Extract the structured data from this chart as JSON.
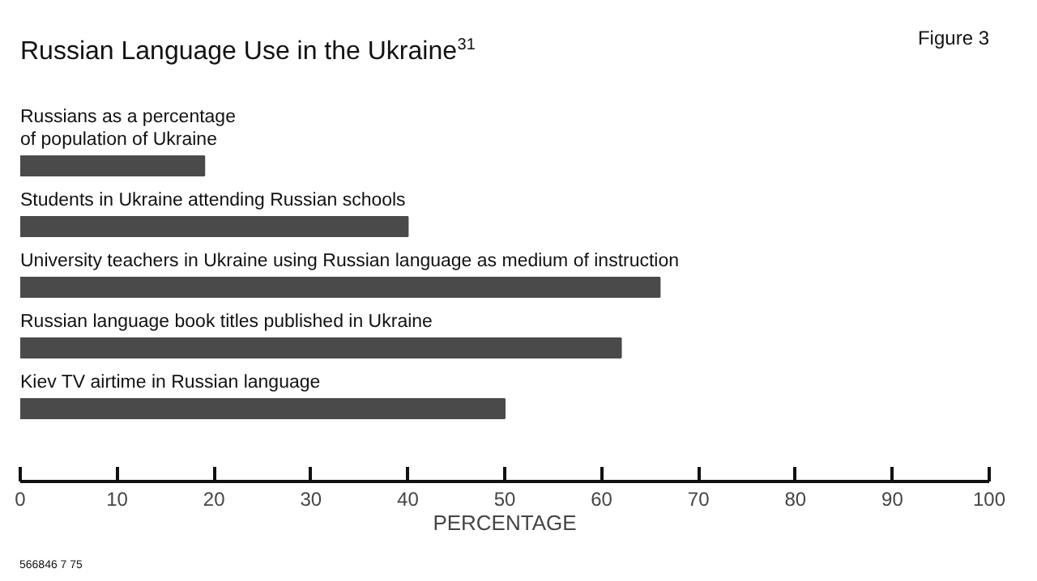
{
  "chart_data": {
    "type": "bar",
    "orientation": "horizontal",
    "title": "Russian Language Use in the Ukraine$^{31}$",
    "xlabel": "PERCENTAGE",
    "categories": [
      "Russians as a percentage\nof population of Ukraine",
      "Students in Ukraine attending Russian schools",
      "University teachers in Ukraine using Russian language as medium of instruction",
      "Russian  language book titles published in Ukraine",
      "Kiev TV airtime in Russian language"
    ],
    "values": [
      19,
      40,
      66,
      62,
      50
    ],
    "color": "#4a4a4a",
    "xlim": [
      0,
      100
    ],
    "xticks": [
      0,
      10,
      20,
      30,
      40,
      50,
      60,
      70,
      80,
      90,
      100
    ],
    "grid": false,
    "annotations": [
      "Figure 3",
      "566846 7 75"
    ]
  }
}
